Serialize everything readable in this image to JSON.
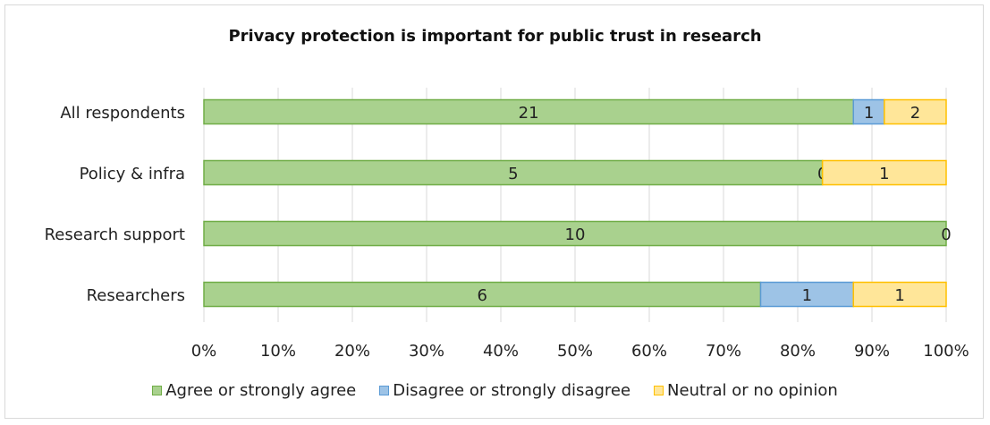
{
  "chart_data": {
    "type": "bar",
    "orientation": "horizontal",
    "stacked": "percent",
    "title": "Privacy protection is important for public trust in research",
    "categories": [
      "All respondents",
      "Policy & infra",
      "Research support",
      "Researchers"
    ],
    "series": [
      {
        "name": "Agree or strongly agree",
        "values": [
          21,
          5,
          10,
          6
        ],
        "color": "#a9d18e",
        "border": "#70ad47"
      },
      {
        "name": "Disagree or strongly disagree",
        "values": [
          1,
          null,
          null,
          1
        ],
        "color": "#9dc3e6",
        "border": "#5b9bd5"
      },
      {
        "name": "Neutral or no opinion",
        "values": [
          2,
          1,
          0,
          1
        ],
        "color": "#ffe699",
        "border": "#ffc000"
      }
    ],
    "labels": [
      [
        "21",
        "",
        "5",
        "",
        "10",
        "",
        "6"
      ]
    ],
    "data_labels": [
      [
        "21",
        "1",
        "2"
      ],
      [
        "5",
        "0",
        "1"
      ],
      [
        "10",
        "",
        "0"
      ],
      [
        "6",
        "1",
        "1"
      ]
    ],
    "x_ticks": [
      "0%",
      "10%",
      "20%",
      "30%",
      "40%",
      "50%",
      "60%",
      "70%",
      "80%",
      "90%",
      "100%"
    ],
    "xlim": [
      0,
      100
    ],
    "grid": true,
    "legend_position": "bottom"
  }
}
